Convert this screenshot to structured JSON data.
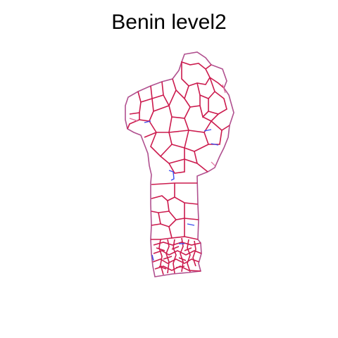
{
  "figure": {
    "title": "Benin level2"
  },
  "colors": {
    "background": "#ffffff",
    "outline": "#b0508f",
    "boundary_red": "#cc1b4e",
    "boundary_blue": "#3a4cf0",
    "boundary_pink": "#e06b9a"
  }
}
